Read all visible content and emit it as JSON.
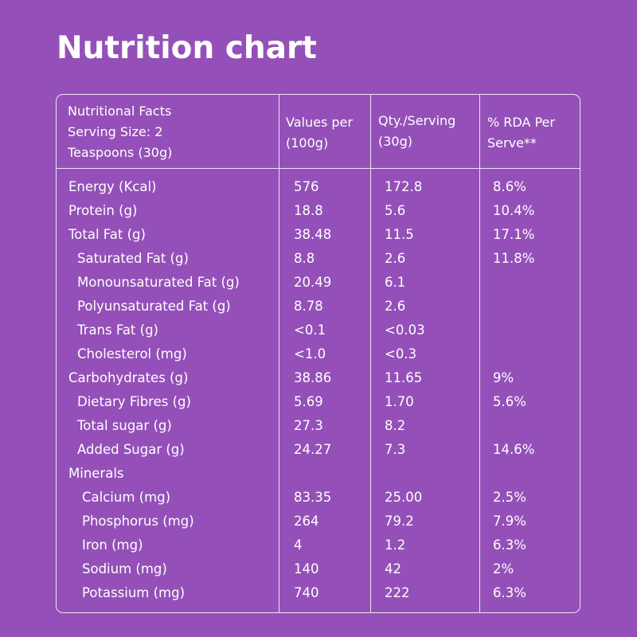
{
  "title": "Nutrition chart",
  "header": {
    "col0": [
      "Nutritional Facts",
      "Serving Size: 2",
      "Teaspoons (30g)"
    ],
    "col1": [
      "Values per",
      "(100g)"
    ],
    "col2": [
      "Qty./Serving",
      "(30g)"
    ],
    "col3": [
      "% RDA Per",
      "Serve**"
    ]
  },
  "rows": [
    {
      "name": "Energy (Kcal)",
      "per100": "576",
      "serving": "172.8",
      "rda": "8.6%",
      "level": "main"
    },
    {
      "name": "Protein (g)",
      "per100": "18.8",
      "serving": "5.6",
      "rda": "10.4%",
      "level": "main"
    },
    {
      "name": "Total Fat (g)",
      "per100": "38.48",
      "serving": "11.5",
      "rda": "17.1%",
      "level": "main"
    },
    {
      "name": "Saturated Fat (g)",
      "per100": "8.8",
      "serving": " 2.6",
      "rda": "11.8%",
      "level": "sub"
    },
    {
      "name": "Monounsaturated Fat (g)",
      "per100": "20.49",
      "serving": "6.1",
      "rda": "",
      "level": "sub"
    },
    {
      "name": "Polyunsaturated Fat (g)",
      "per100": "8.78",
      "serving": " 2.6",
      "rda": "",
      "level": "sub"
    },
    {
      "name": "Trans Fat (g)",
      "per100": "<0.1",
      "serving": "<0.03",
      "rda": "",
      "level": "sub"
    },
    {
      "name": "Cholesterol (mg)",
      "per100": "<1.0",
      "serving": "<0.3",
      "rda": "",
      "level": "sub"
    },
    {
      "name": "Carbohydrates (g)",
      "per100": "38.86",
      "serving": "11.65",
      "rda": "9%",
      "level": "main"
    },
    {
      "name": "Dietary Fibres (g)",
      "per100": "5.69",
      "serving": "1.70",
      "rda": "5.6%",
      "level": "sub"
    },
    {
      "name": "Total sugar (g)",
      "per100": "27.3",
      "serving": "8.2",
      "rda": "",
      "level": "sub"
    },
    {
      "name": "Added Sugar (g)",
      "per100": "24.27",
      "serving": "7.3",
      "rda": "14.6%",
      "level": "sub"
    },
    {
      "name": "Minerals",
      "per100": "",
      "serving": "",
      "rda": "",
      "level": "main"
    },
    {
      "name": "Calcium (mg)",
      "per100": "83.35",
      "serving": "25.00",
      "rda": "2.5%",
      "level": "min"
    },
    {
      "name": "Phosphorus (mg)",
      "per100": "264",
      "serving": "79.2",
      "rda": "7.9%",
      "level": "min"
    },
    {
      "name": "Iron (mg)",
      "per100": "4",
      "serving": "1.2",
      "rda": "6.3%",
      "level": "min"
    },
    {
      "name": "Sodium (mg)",
      "per100": "140",
      "serving": "42",
      "rda": "2%",
      "level": "min"
    },
    {
      "name": "Potassium (mg)",
      "per100": "740",
      "serving": "222",
      "rda": "6.3%",
      "level": "min"
    }
  ]
}
